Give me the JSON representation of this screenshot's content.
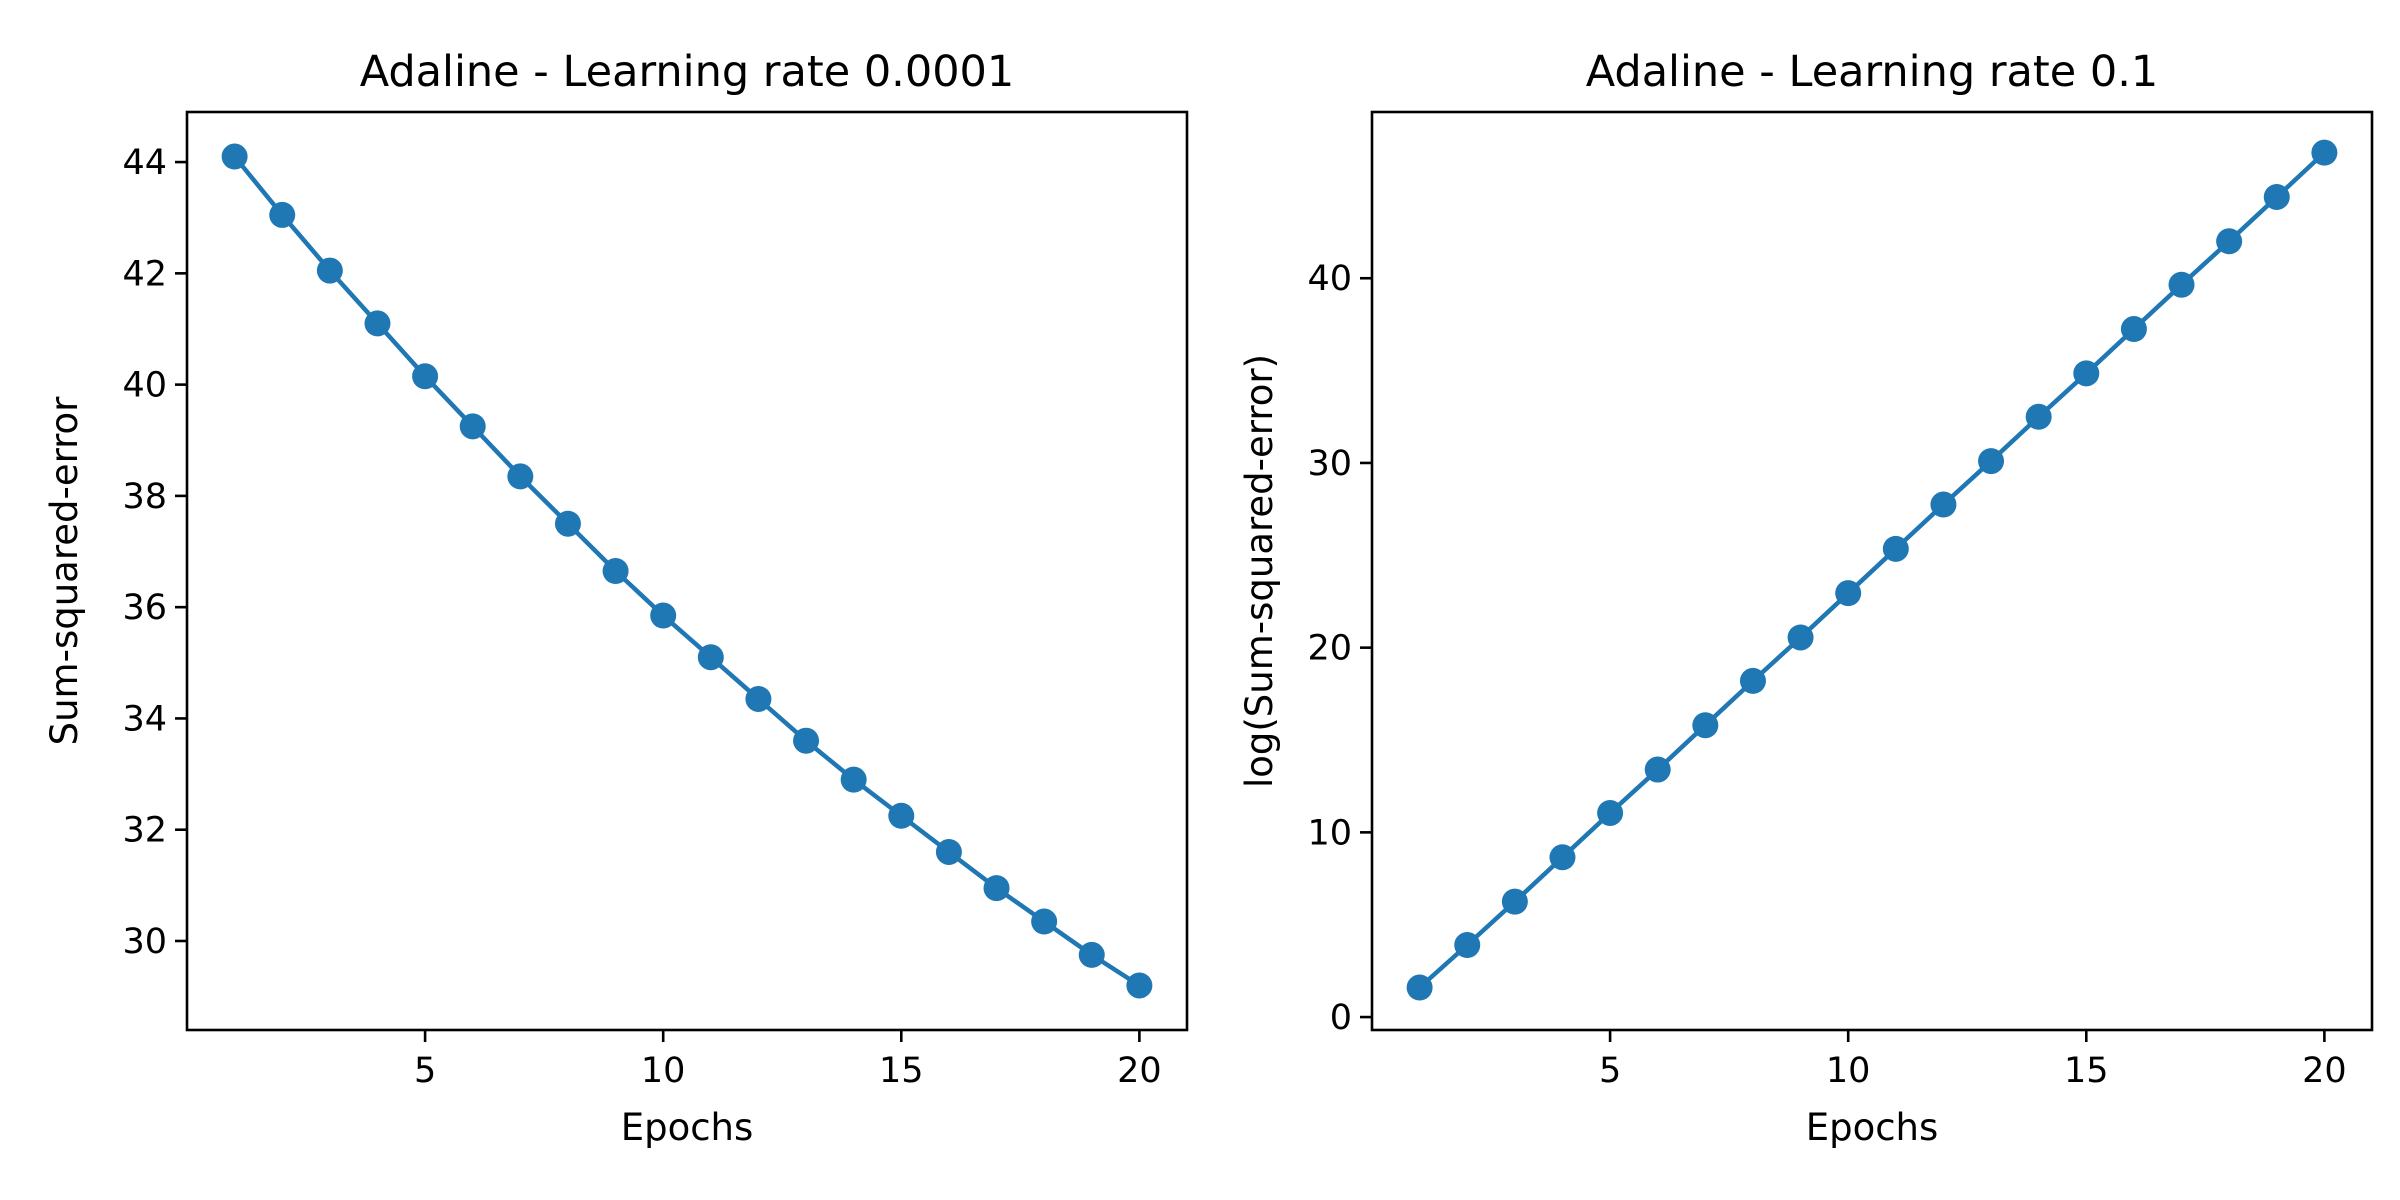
{
  "chart_data": [
    {
      "type": "line",
      "title": "Adaline - Learning rate 0.0001",
      "xlabel": "Epochs",
      "ylabel": "Sum-squared-error",
      "xlim": [
        0,
        21
      ],
      "ylim": [
        28.4,
        44.9
      ],
      "xticks": [
        5,
        10,
        15,
        20
      ],
      "yticks": [
        30,
        32,
        34,
        36,
        38,
        40,
        42,
        44
      ],
      "grid": false,
      "color": "#1f77b4",
      "marker": "circle",
      "x": [
        1,
        2,
        3,
        4,
        5,
        6,
        7,
        8,
        9,
        10,
        11,
        12,
        13,
        14,
        15,
        16,
        17,
        18,
        19,
        20
      ],
      "values": [
        44.1,
        43.05,
        42.05,
        41.1,
        40.15,
        39.25,
        38.35,
        37.5,
        36.65,
        35.85,
        35.1,
        34.35,
        33.6,
        32.9,
        32.25,
        31.6,
        30.95,
        30.35,
        29.75,
        29.2
      ]
    },
    {
      "type": "line",
      "title": "Adaline - Learning rate 0.1",
      "xlabel": "Epochs",
      "ylabel": "log(Sum-squared-error)",
      "xlim": [
        0,
        21
      ],
      "ylim": [
        -0.7,
        49.0
      ],
      "xticks": [
        5,
        10,
        15,
        20
      ],
      "yticks": [
        0,
        10,
        20,
        30,
        40
      ],
      "grid": false,
      "color": "#1f77b4",
      "marker": "circle",
      "x": [
        1,
        2,
        3,
        4,
        5,
        6,
        7,
        8,
        9,
        10,
        11,
        12,
        13,
        14,
        15,
        16,
        17,
        18,
        19,
        20
      ],
      "values": [
        1.6,
        3.9,
        6.25,
        8.65,
        11.05,
        13.4,
        15.8,
        18.2,
        20.55,
        22.95,
        25.35,
        27.75,
        30.1,
        32.5,
        34.85,
        37.25,
        39.65,
        42.0,
        44.4,
        46.8
      ]
    }
  ]
}
